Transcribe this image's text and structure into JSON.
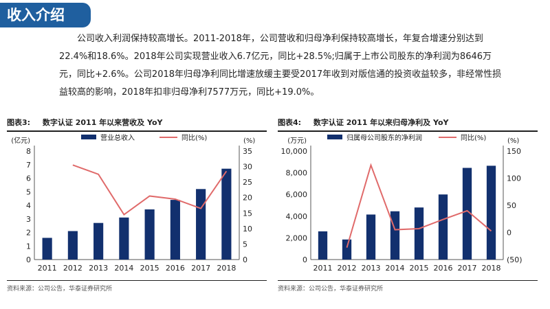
{
  "header": {
    "title": "收入介绍"
  },
  "intro": {
    "text": "公司收入利润保持较高增长。2011-2018年，公司营收和归母净利保持较高增长，年复合增速分别达到22.4%和18.6%。2018年公司实现营业收入6.7亿元，同比+28.5%;归属于上市公司股东的净利润为8646万元，同比+2.6%。公司2018年归母净利同比增速放缓主要受2017年收到对版信通的投资收益较多，非经常性损益较高的影响，2018年扣非归母净利7577万元，同比+19.0%。"
  },
  "colors": {
    "bar": "#12306e",
    "line": "#e06a6a",
    "title_bg": "#1f5f9f"
  },
  "charts": [
    {
      "fig_label": "图表3:",
      "title": "数字认证 2011 年以来营收及 YoY",
      "source": "资料来源：公司公告，华泰证券研究所"
    },
    {
      "fig_label": "图表4:",
      "title": "数字认证 2011 年以来归母净利及 YoY",
      "source": "资料来源：公司公告，华泰证券研究所"
    }
  ],
  "chart_data": [
    {
      "type": "bar",
      "categories": [
        "2011",
        "2012",
        "2013",
        "2014",
        "2015",
        "2016",
        "2017",
        "2018"
      ],
      "series": [
        {
          "name": "营业总收入",
          "type": "bar",
          "axis": "left",
          "values": [
            1.6,
            2.1,
            2.7,
            3.1,
            3.7,
            4.4,
            5.2,
            6.7
          ]
        },
        {
          "name": "同比(%)",
          "type": "line",
          "axis": "right",
          "values": [
            null,
            30.5,
            27.5,
            14.5,
            20.5,
            19.5,
            16.5,
            28.5
          ]
        }
      ],
      "ylabel_left": "(亿元)",
      "ylabel_right": "(%)",
      "ylim_left": [
        0,
        8
      ],
      "ylim_right": [
        0,
        35
      ],
      "yticks_left": [
        0,
        1,
        2,
        3,
        4,
        5,
        6,
        7,
        8
      ],
      "yticks_right": [
        0,
        5,
        10,
        15,
        20,
        25,
        30,
        35
      ],
      "yticks_left_labels": [
        "0",
        "1",
        "2",
        "3",
        "4",
        "5",
        "6",
        "7",
        "8"
      ],
      "yticks_right_labels": [
        "0",
        "5",
        "10",
        "15",
        "20",
        "25",
        "30",
        "35"
      ],
      "legend_position": "top",
      "grid": false
    },
    {
      "type": "bar",
      "categories": [
        "2011",
        "2012",
        "2013",
        "2014",
        "2015",
        "2016",
        "2017",
        "2018"
      ],
      "series": [
        {
          "name": "归属母公司股东的净利润",
          "type": "bar",
          "axis": "left",
          "values": [
            2600,
            1850,
            4150,
            4450,
            4800,
            6000,
            8450,
            8646
          ]
        },
        {
          "name": "同比(%)",
          "type": "line",
          "axis": "right",
          "values": [
            null,
            -28,
            124,
            5,
            7,
            24,
            40,
            2.6
          ]
        }
      ],
      "ylabel_left": "(万元)",
      "ylabel_right": "(%)",
      "ylim_left": [
        0,
        10000
      ],
      "ylim_right": [
        -50,
        150
      ],
      "yticks_left": [
        0,
        2000,
        4000,
        6000,
        8000,
        10000
      ],
      "yticks_right": [
        -50,
        0,
        50,
        100,
        150
      ],
      "yticks_left_labels": [
        "0",
        "2,000",
        "4,000",
        "6,000",
        "8,000",
        "10,000"
      ],
      "yticks_right_labels": [
        "(50)",
        "0",
        "50",
        "100",
        "150"
      ],
      "legend_position": "top",
      "grid": false
    }
  ]
}
